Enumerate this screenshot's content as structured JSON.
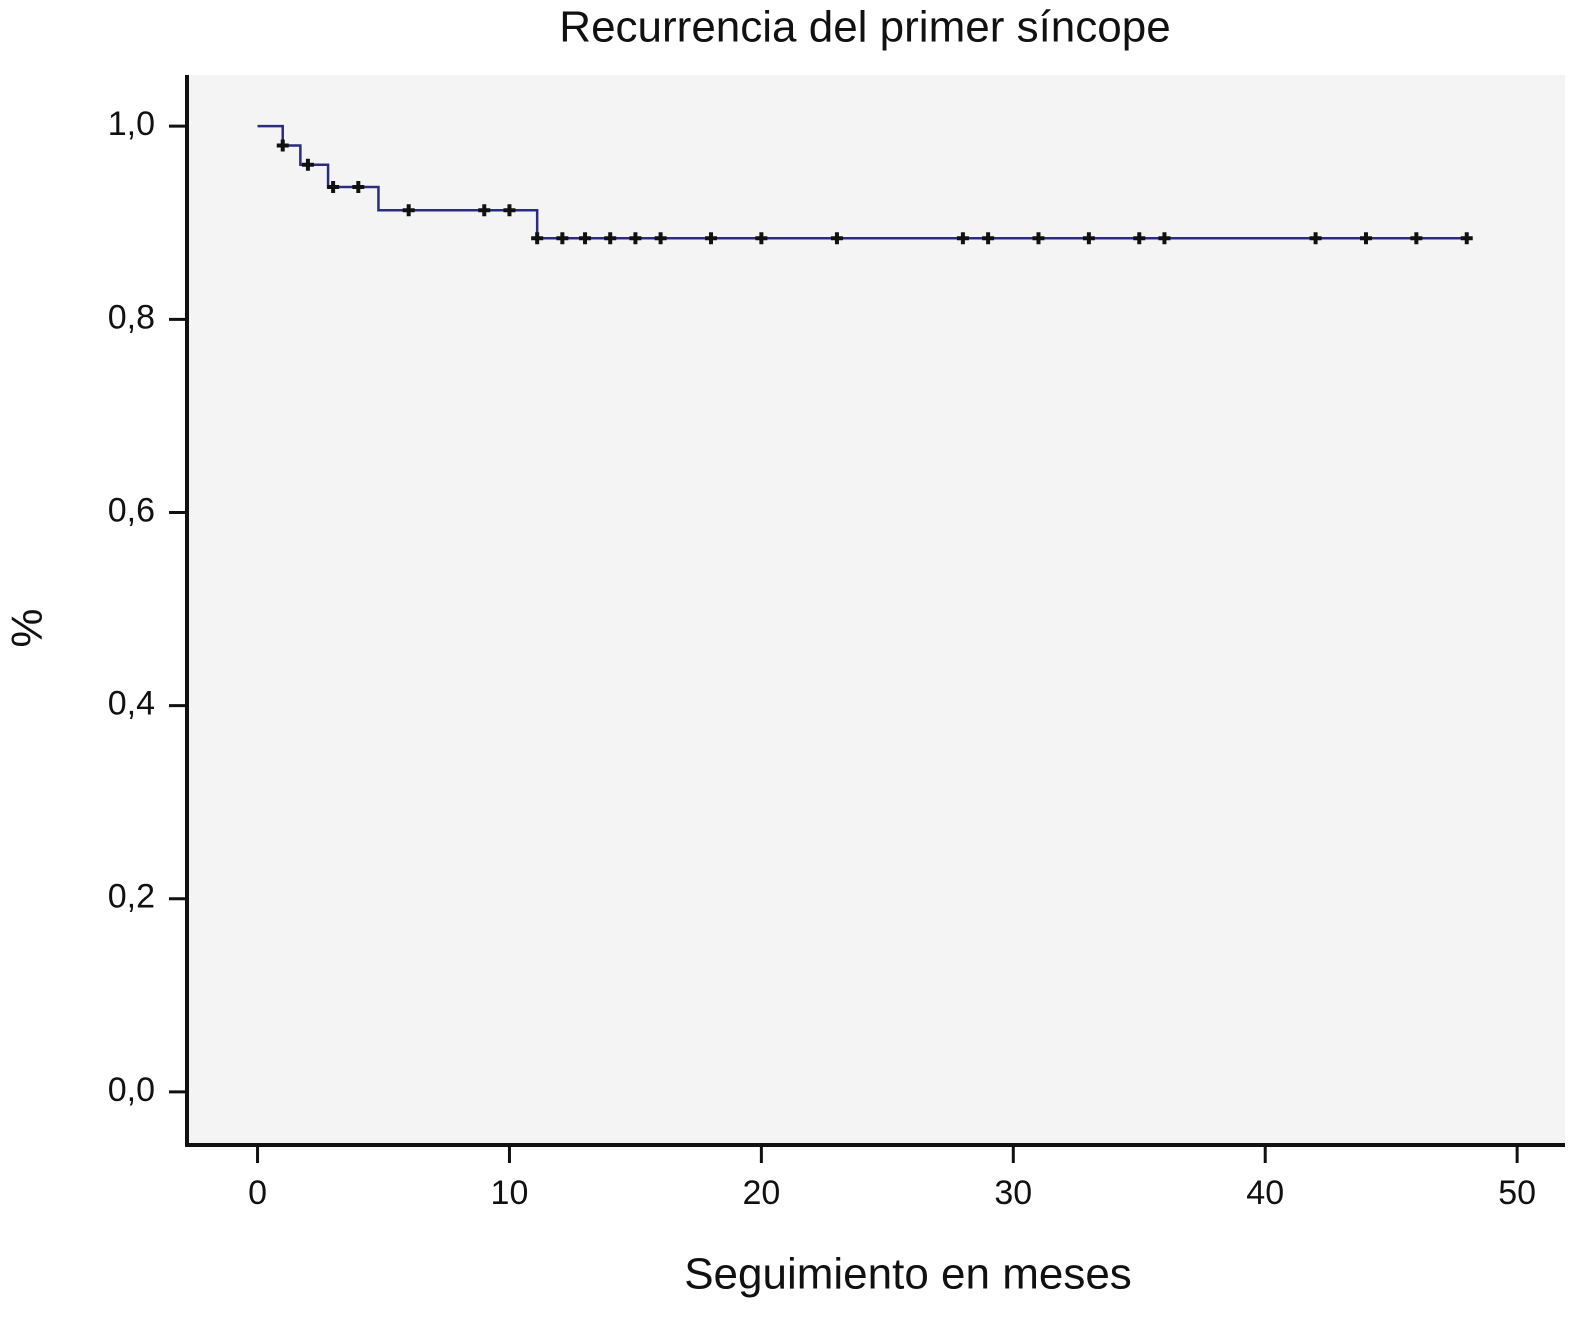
{
  "chart_data": {
    "type": "step",
    "title": "Recurrencia del primer síncope",
    "x_label": "Seguimiento en meses",
    "y_label": "%",
    "series": [
      {
        "color": "#2b2b82",
        "x": [
          0,
          1,
          1.7,
          2.8,
          4.8,
          11.1,
          48.2
        ],
        "values": [
          1,
          0.98,
          0.96,
          0.937,
          0.913,
          0.884,
          0.884
        ],
        "censored_x": [
          1,
          2,
          3,
          4,
          6,
          9,
          10,
          11.1,
          12.1,
          13,
          14,
          15,
          16,
          18,
          20,
          23,
          28,
          29,
          31,
          33,
          35,
          36,
          42,
          44,
          46,
          48
        ],
        "censored_values": [
          0.98,
          0.96,
          0.937,
          0.937,
          0.913,
          0.913,
          0.913,
          0.884,
          0.884,
          0.884,
          0.884,
          0.884,
          0.884,
          0.884,
          0.884,
          0.884,
          0.884,
          0.884,
          0.884,
          0.884,
          0.884,
          0.884,
          0.884,
          0.884,
          0.884,
          0.884
        ]
      }
    ],
    "xlim": [
      -2.8,
      51.9
    ],
    "ylim": [
      -0.055,
      1.053
    ],
    "xticks": [
      0,
      10,
      20,
      30,
      40,
      50
    ],
    "yticks": [
      {
        "value": 0,
        "label": "0,0"
      },
      {
        "value": 0.2,
        "label": "0,2"
      },
      {
        "value": 0.4,
        "label": "0,4"
      },
      {
        "value": 0.6,
        "label": "0,6"
      },
      {
        "value": 0.8,
        "label": "0,8"
      },
      {
        "value": 1,
        "label": "1,0"
      }
    ],
    "background": "#f4f4f4"
  }
}
